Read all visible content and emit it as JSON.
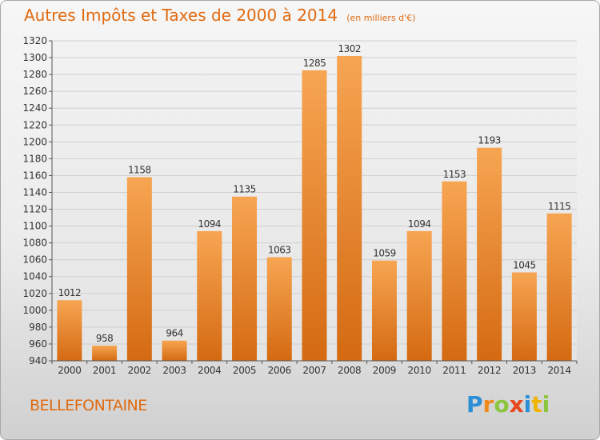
{
  "chart_data": {
    "type": "bar",
    "title": "Autres Impôts et Taxes de 2000 à 2014",
    "subtitle": "(en milliers d'€)",
    "categories": [
      "2000",
      "2001",
      "2002",
      "2003",
      "2004",
      "2005",
      "2006",
      "2007",
      "2008",
      "2009",
      "2010",
      "2011",
      "2012",
      "2013",
      "2014"
    ],
    "values": [
      1012,
      958,
      1158,
      964,
      1094,
      1135,
      1063,
      1285,
      1302,
      1059,
      1094,
      1153,
      1193,
      1045,
      1115
    ],
    "ylim": [
      940,
      1320
    ],
    "ytick_step": 20,
    "grid": true,
    "bar_color": "#f0903a"
  },
  "commune": "BELLEFONTAINE",
  "logo": {
    "text": "Proxiti",
    "letters": [
      {
        "ch": "P",
        "color": "#2a8fd6"
      },
      {
        "ch": "r",
        "color": "#f08a1c"
      },
      {
        "ch": "o",
        "color": "#8cc63f"
      },
      {
        "ch": "x",
        "color": "#e8461e"
      },
      {
        "ch": "i",
        "color": "#2a8fd6"
      },
      {
        "ch": "t",
        "color": "#f0b400"
      },
      {
        "ch": "i",
        "color": "#8cc63f"
      }
    ]
  }
}
